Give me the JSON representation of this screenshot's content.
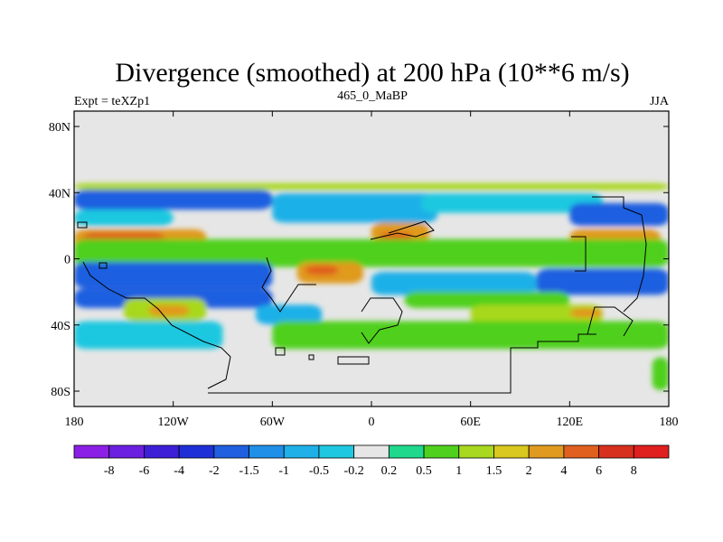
{
  "chart_data": {
    "type": "heatmap",
    "title": "Divergence (smoothed) at 200 hPa (10**6 m/s)",
    "subtitle_left": "Expt = teXZp1",
    "subtitle_center": "465_0_MaBP",
    "subtitle_right": "JJA",
    "x_ticks": [
      "180",
      "120W",
      "60W",
      "0",
      "60E",
      "120E",
      "180"
    ],
    "y_ticks": [
      "80N",
      "40N",
      "0",
      "40S",
      "80S"
    ],
    "x_range": [
      -180,
      180
    ],
    "y_range": [
      -90,
      90
    ],
    "colorbar_labels": [
      "-8",
      "-6",
      "-4",
      "-2",
      "-1.5",
      "-1",
      "-0.5",
      "-0.2",
      "0.2",
      "0.5",
      "1",
      "1.5",
      "2",
      "4",
      "6",
      "8"
    ],
    "colorbar_colors": [
      "#8c1fe6",
      "#6b1fe0",
      "#3d1fd8",
      "#1f2fd8",
      "#1f5fe0",
      "#1f8fe8",
      "#1fb0e8",
      "#1fc8e0",
      "#e6e6e6",
      "#1fd88c",
      "#4fd01f",
      "#a8d81f",
      "#d8c81f",
      "#e09a1f",
      "#e0601f",
      "#d8301f",
      "#e01f1f"
    ],
    "bands": [
      {
        "lat": [
          42,
          46
        ],
        "lon": [
          -180,
          180
        ],
        "v": 1
      },
      {
        "lat": [
          30,
          42
        ],
        "lon": [
          -180,
          -60
        ],
        "v": -2
      },
      {
        "lat": [
          22,
          40
        ],
        "lon": [
          -60,
          40
        ],
        "v": -1
      },
      {
        "lat": [
          28,
          40
        ],
        "lon": [
          30,
          140
        ],
        "v": -0.5
      },
      {
        "lat": [
          20,
          34
        ],
        "lon": [
          120,
          180
        ],
        "v": -2
      },
      {
        "lat": [
          20,
          30
        ],
        "lon": [
          -180,
          -120
        ],
        "v": -0.5
      },
      {
        "lat": [
          2,
          18
        ],
        "lon": [
          -180,
          -100
        ],
        "v": 2
      },
      {
        "lat": [
          6,
          16
        ],
        "lon": [
          -175,
          -125
        ],
        "v": 4
      },
      {
        "lat": [
          10,
          22
        ],
        "lon": [
          0,
          35
        ],
        "v": 2
      },
      {
        "lat": [
          10,
          16
        ],
        "lon": [
          5,
          25
        ],
        "v": 4
      },
      {
        "lat": [
          -5,
          18
        ],
        "lon": [
          120,
          175
        ],
        "v": 2
      },
      {
        "lat": [
          0,
          12
        ],
        "lon": [
          150,
          170
        ],
        "v": 4
      },
      {
        "lat": [
          -5,
          12
        ],
        "lon": [
          -180,
          180
        ],
        "v": 0.5
      },
      {
        "lat": [
          -18,
          -2
        ],
        "lon": [
          -180,
          -60
        ],
        "v": -2
      },
      {
        "lat": [
          -15,
          -2
        ],
        "lon": [
          -45,
          -5
        ],
        "v": 2
      },
      {
        "lat": [
          -10,
          -4
        ],
        "lon": [
          -40,
          -20
        ],
        "v": 4
      },
      {
        "lat": [
          -22,
          -8
        ],
        "lon": [
          0,
          100
        ],
        "v": -1
      },
      {
        "lat": [
          -22,
          -6
        ],
        "lon": [
          100,
          180
        ],
        "v": -2
      },
      {
        "lat": [
          -30,
          -18
        ],
        "lon": [
          -180,
          -60
        ],
        "v": -2
      },
      {
        "lat": [
          -30,
          -20
        ],
        "lon": [
          20,
          120
        ],
        "v": 0.5
      },
      {
        "lat": [
          -38,
          -24
        ],
        "lon": [
          -150,
          -100
        ],
        "v": 1
      },
      {
        "lat": [
          -35,
          -28
        ],
        "lon": [
          -135,
          -110
        ],
        "v": 2
      },
      {
        "lat": [
          -40,
          -28
        ],
        "lon": [
          -70,
          -30
        ],
        "v": -1
      },
      {
        "lat": [
          -40,
          -28
        ],
        "lon": [
          60,
          140
        ],
        "v": 1
      },
      {
        "lat": [
          -36,
          -30
        ],
        "lon": [
          120,
          140
        ],
        "v": 2
      },
      {
        "lat": [
          -55,
          -38
        ],
        "lon": [
          -180,
          -90
        ],
        "v": -0.5
      },
      {
        "lat": [
          -55,
          -38
        ],
        "lon": [
          -60,
          180
        ],
        "v": 0.5
      },
      {
        "lat": [
          -80,
          -60
        ],
        "lon": [
          170,
          180
        ],
        "v": 0.5
      }
    ]
  }
}
